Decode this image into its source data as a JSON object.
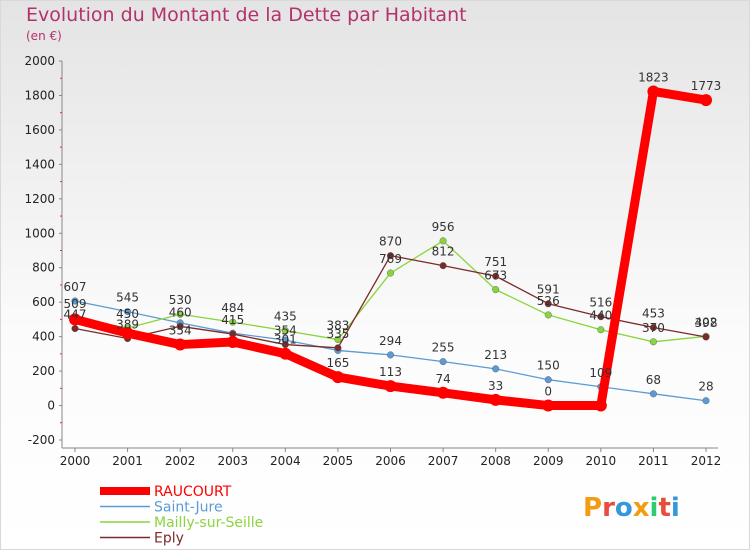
{
  "title": "Evolution du Montant de la Dette par Habitant",
  "subtitle": "(en €)",
  "logo": {
    "text": "Proxiti",
    "letters": [
      "P",
      "r",
      "o",
      "x",
      "i",
      "t",
      "i"
    ],
    "colors": [
      "#f39c12",
      "#e74c3c",
      "#3498db",
      "#f39c12",
      "#2ecc71",
      "#e74c3c",
      "#3498db"
    ]
  },
  "chart_data": {
    "type": "line",
    "x": [
      "2000",
      "2001",
      "2002",
      "2003",
      "2004",
      "2005",
      "2006",
      "2007",
      "2008",
      "2009",
      "2010",
      "2011",
      "2012"
    ],
    "ylim": [
      -200,
      2000
    ],
    "yticks": [
      "-200",
      "0",
      "200",
      "400",
      "600",
      "800",
      "1000",
      "1200",
      "1400",
      "1600",
      "1800",
      "2000"
    ],
    "grid": false,
    "legend": "bottom-left",
    "series": [
      {
        "name": "RAUCOURT",
        "color": "#ff0000",
        "values": [
          500,
          420,
          354,
          369,
          301,
          165,
          113,
          74,
          33,
          0,
          0,
          1823,
          1773
        ],
        "labels": [
          "",
          "",
          "354",
          "",
          "301",
          "165",
          "113",
          "74",
          "33",
          "0",
          "",
          "1823",
          "1773"
        ]
      },
      {
        "name": "Saint-Jure",
        "color": "#5b9bd5",
        "values": [
          607,
          545,
          480,
          420,
          380,
          320,
          294,
          255,
          213,
          150,
          109,
          68,
          28
        ],
        "labels": [
          "607",
          "545",
          "",
          "",
          "",
          "",
          "294",
          "255",
          "213",
          "150",
          "109",
          "68",
          "28"
        ]
      },
      {
        "name": "Mailly-sur-Seille",
        "color": "#8ad43d",
        "values": [
          509,
          450,
          530,
          484,
          435,
          383,
          769,
          956,
          673,
          526,
          440,
          370,
          402
        ],
        "labels": [
          "509",
          "450",
          "530",
          "484",
          "435",
          "383",
          "769",
          "956",
          "673",
          "526",
          "440",
          "370",
          "402"
        ]
      },
      {
        "name": "Eply",
        "color": "#7b2a2a",
        "values": [
          447,
          389,
          460,
          415,
          354,
          335,
          870,
          812,
          751,
          591,
          516,
          453,
          398
        ],
        "labels": [
          "447",
          "389",
          "460",
          "415",
          "354",
          "335",
          "870",
          "812",
          "751",
          "591",
          "516",
          "453",
          "398"
        ]
      }
    ]
  }
}
